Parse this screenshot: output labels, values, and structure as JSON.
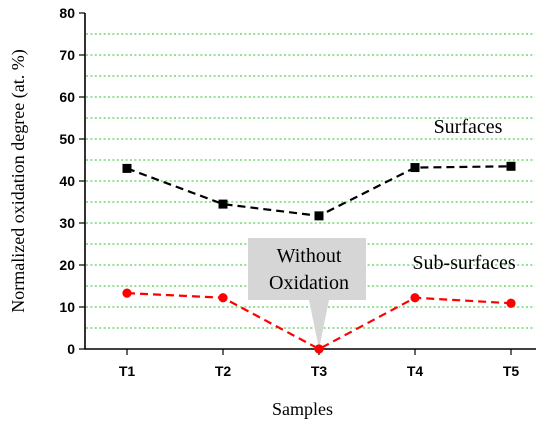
{
  "chart_data": {
    "type": "line",
    "title": "",
    "xlabel": "Samples",
    "ylabel": "Normalized oxidation degree (at. %)",
    "categories": [
      "T1",
      "T2",
      "T3",
      "T4",
      "T5"
    ],
    "ylim": [
      0,
      80
    ],
    "yticks": [
      0,
      10,
      20,
      30,
      40,
      50,
      60,
      70,
      80
    ],
    "grid": "horizontal dotted, every 5 units",
    "series": [
      {
        "name": "Surfaces",
        "values": [
          43.0,
          34.5,
          31.7,
          43.2,
          43.5
        ],
        "color": "#000000",
        "marker": "square",
        "line_style": "dashed"
      },
      {
        "name": "Sub-surfaces",
        "values": [
          13.3,
          12.2,
          0.0,
          12.2,
          10.9
        ],
        "color": "#ff0000",
        "marker": "circle",
        "line_style": "dashed"
      }
    ],
    "annotations": [
      {
        "text_lines": [
          "Without",
          "Oxidation"
        ],
        "style": "callout",
        "points_to": "T3 Sub-surfaces"
      }
    ]
  },
  "colors": {
    "grid": "#29c629",
    "surfaces": "#000000",
    "sub_surfaces": "#ff0000",
    "callout": "#d6d6d6"
  }
}
